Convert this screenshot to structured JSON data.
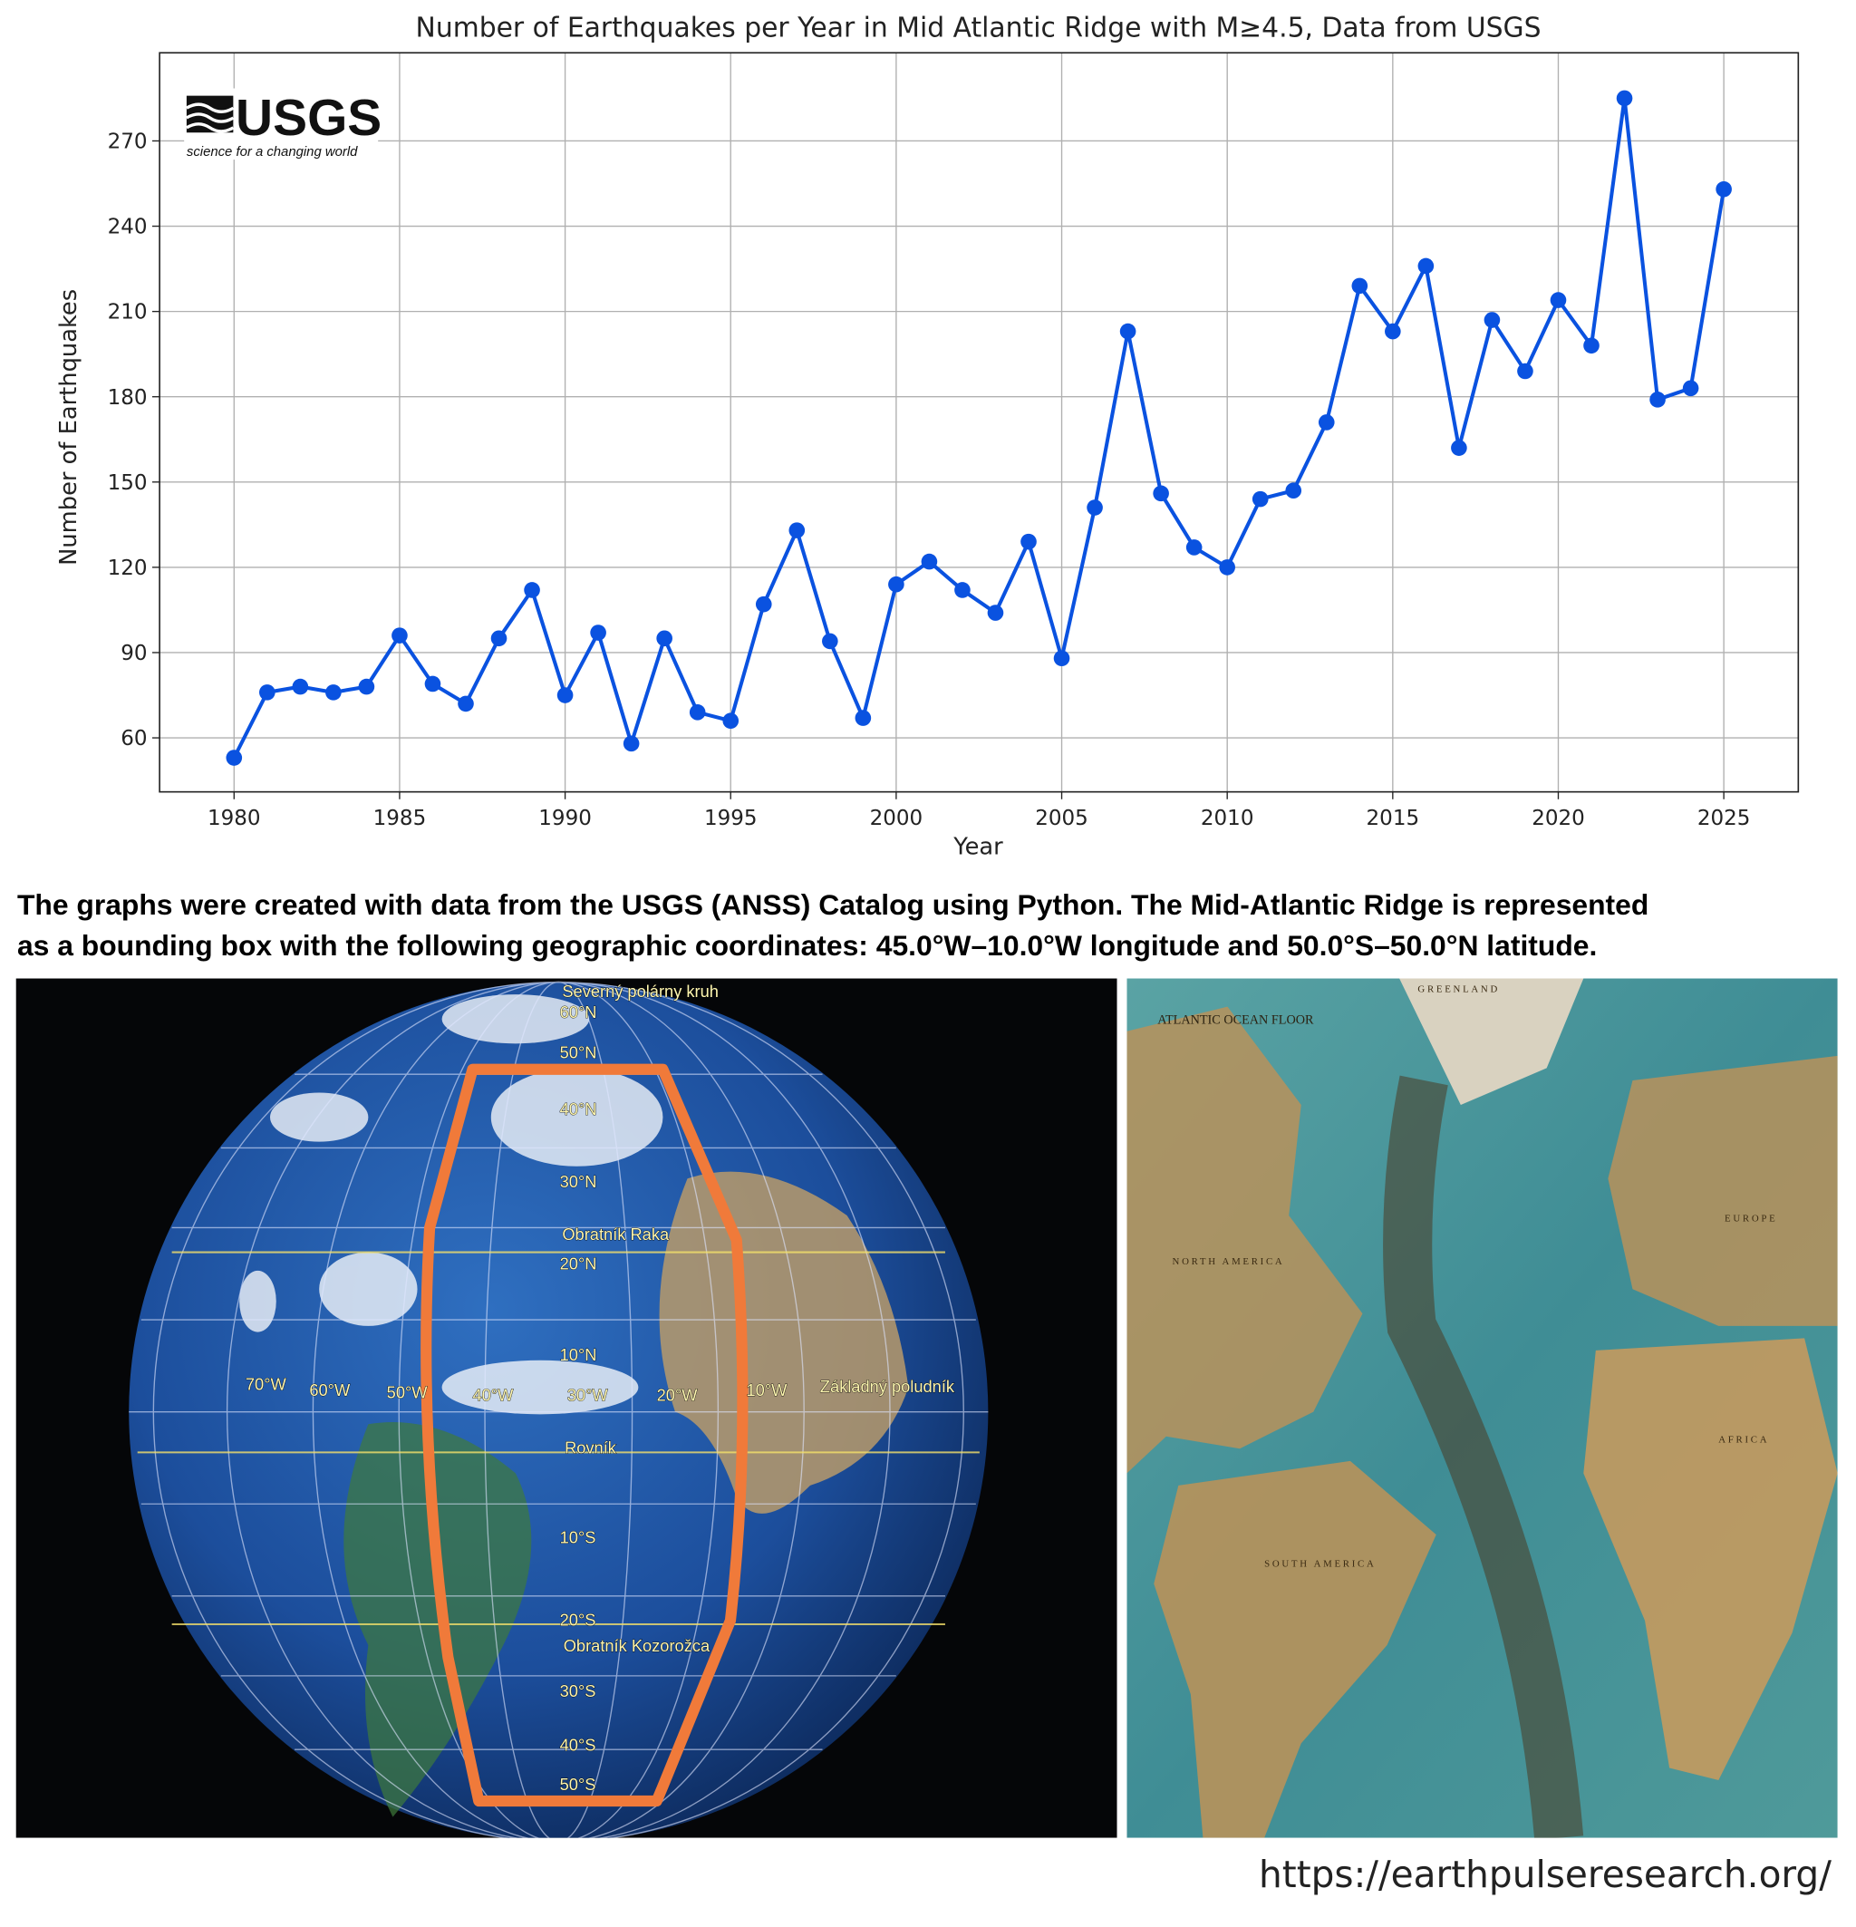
{
  "chart_data": {
    "type": "line",
    "title": "Number of Earthquakes per Year in Mid Atlantic Ridge with M≥4.5, Data from USGS",
    "x_label": "Year",
    "y_label": "Number of Earthquakes",
    "x": [
      1980,
      1981,
      1982,
      1983,
      1984,
      1985,
      1986,
      1987,
      1988,
      1989,
      1990,
      1991,
      1992,
      1993,
      1994,
      1995,
      1996,
      1997,
      1998,
      1999,
      2000,
      2001,
      2002,
      2003,
      2004,
      2005,
      2006,
      2007,
      2008,
      2009,
      2010,
      2011,
      2012,
      2013,
      2014,
      2015,
      2016,
      2017,
      2018,
      2019,
      2020,
      2021,
      2022,
      2023,
      2024,
      2025
    ],
    "values": [
      53,
      76,
      78,
      76,
      78,
      96,
      79,
      72,
      95,
      112,
      75,
      97,
      58,
      95,
      69,
      66,
      107,
      133,
      94,
      67,
      114,
      122,
      112,
      104,
      129,
      88,
      141,
      203,
      146,
      127,
      120,
      144,
      147,
      171,
      219,
      203,
      226,
      162,
      207,
      189,
      214,
      198,
      285,
      179,
      183,
      253
    ],
    "color": "#0a52e0",
    "xlim": [
      1977.75,
      2027.25
    ],
    "ylim": [
      41,
      301
    ],
    "xticks": [
      1980,
      1985,
      1990,
      1995,
      2000,
      2005,
      2010,
      2015,
      2020,
      2025
    ],
    "yticks": [
      60,
      90,
      120,
      150,
      180,
      210,
      240,
      270
    ],
    "grid": true
  },
  "logo": {
    "name": "USGS",
    "tagline": "science for a changing world"
  },
  "caption": {
    "lines": [
      "The graphs were created with data from the  USGS (ANSS)  Catalog using Python. The Mid-Atlantic Ridge is represented",
      "as a bounding box with the following geographic coordinates: 45.0°W–10.0°W longitude and 50.0°S–50.0°N latitude."
    ]
  },
  "globe": {
    "labels": [
      "Severný polárny kruh",
      "60°N",
      "50°N",
      "40°N",
      "30°N",
      "Obratník Raka",
      "20°N",
      "10°N",
      "Rovník",
      "10°S",
      "20°S",
      "Obratník Kozorožca",
      "30°S",
      "40°S",
      "50°S",
      "70°W",
      "60°W",
      "50°W",
      "40°W",
      "30°W",
      "20°W",
      "10°W",
      "Základný poludník"
    ]
  },
  "map": {
    "title": "ATLANTIC OCEAN FLOOR",
    "labels": [
      "GREENLAND",
      "NORTH AMERICA",
      "EUROPE",
      "AFRICA",
      "SOUTH AMERICA"
    ]
  },
  "footer": {
    "url": "https://earthpulseresearch.org/"
  }
}
